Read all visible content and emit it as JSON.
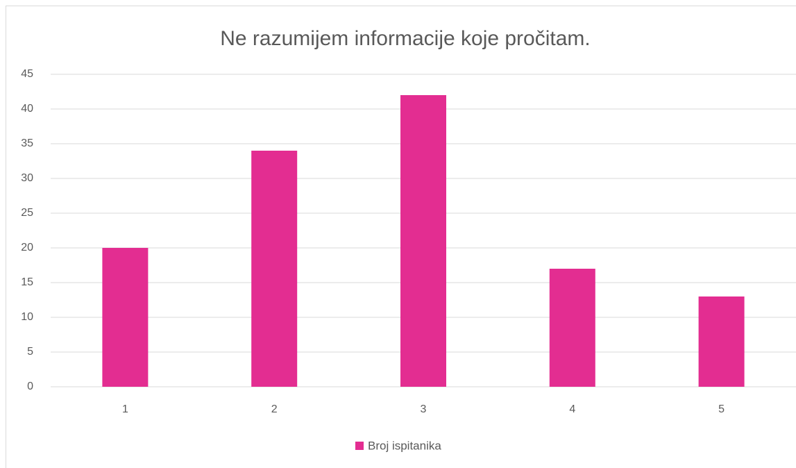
{
  "chart_data": {
    "type": "bar",
    "title": "Ne razumijem informacije koje pročitam.",
    "categories": [
      "1",
      "2",
      "3",
      "4",
      "5"
    ],
    "series": [
      {
        "name": "Broj ispitanika",
        "color": "#e32d91",
        "values": [
          20,
          34,
          42,
          17,
          13
        ]
      }
    ],
    "ylim": [
      0,
      45
    ],
    "yticks": [
      0,
      5,
      10,
      15,
      20,
      25,
      30,
      35,
      40,
      45
    ],
    "grid": true,
    "legend": "bottom"
  }
}
